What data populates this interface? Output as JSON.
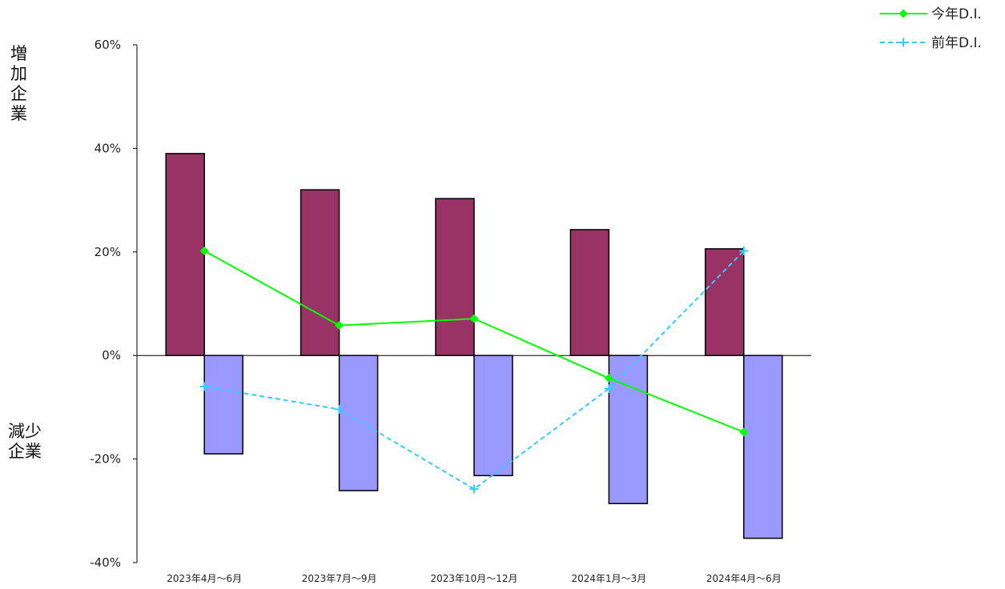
{
  "side_labels": {
    "increase": "増\n加\n企\n業",
    "decrease": "減少\n企業"
  },
  "chart_data": {
    "type": "bar",
    "categories": [
      "2023年4月～6月",
      "2023年7月～9月",
      "2023年10月～12月",
      "2024年1月～3月",
      "2024年4月～6月"
    ],
    "ylim": [
      -40,
      60
    ],
    "yticks": [
      -40,
      -20,
      0,
      20,
      40,
      60
    ],
    "ytick_labels": [
      "-40%",
      "-20%",
      "0%",
      "20%",
      "40%",
      "60%"
    ],
    "bar_series": [
      {
        "values": [
          39,
          32,
          30.3,
          24.3,
          20.6
        ],
        "color": "#993366"
      },
      {
        "values": [
          -19,
          -26.1,
          -23.2,
          -28.6,
          -35.3
        ],
        "color": "#9999ff"
      }
    ],
    "line_series": [
      {
        "name": "今年D.I.",
        "values": [
          20.2,
          5.8,
          7.1,
          -4.4,
          -14.8
        ],
        "color": "#00ff00",
        "marker": "diamond",
        "dash": "solid"
      },
      {
        "name": "前年D.I.",
        "values": [
          -6,
          -10.4,
          -25.8,
          -6.4,
          20.2
        ],
        "color": "#33ccff",
        "marker": "plus",
        "dash": "dashed"
      }
    ],
    "legend_position": "top-right"
  }
}
